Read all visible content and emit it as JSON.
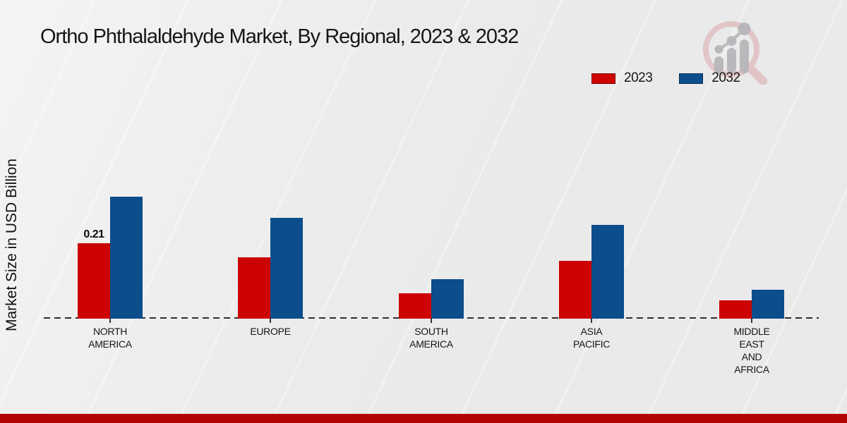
{
  "page": {
    "title": "Ortho Phthalaldehyde Market, By Regional, 2023 & 2032",
    "y_axis_label": "Market Size in USD Billion"
  },
  "legend": {
    "items": [
      {
        "label": "2023",
        "color": "#cc0302"
      },
      {
        "label": "2032",
        "color": "#0c4d8c"
      }
    ],
    "position": "top-right"
  },
  "colors": {
    "series_2023": "#cc0302",
    "series_2032": "#0c4d8c",
    "footer_accent": "#b50404",
    "baseline": "#2e2e2e",
    "background": "#ebebeb",
    "text": "#161616"
  },
  "logo": {
    "name": "magnifier-bar-chart-logo"
  },
  "chart_data": {
    "type": "bar",
    "title": "Ortho Phthalaldehyde Market, By Regional, 2023 & 2032",
    "xlabel": "",
    "ylabel": "Market Size in USD Billion",
    "categories": [
      "NORTH AMERICA",
      "EUROPE",
      "SOUTH AMERICA",
      "ASIA PACIFIC",
      "MIDDLE EAST AND AFRICA"
    ],
    "category_lines": [
      [
        "NORTH",
        "AMERICA"
      ],
      [
        "EUROPE"
      ],
      [
        "SOUTH",
        "AMERICA"
      ],
      [
        "ASIA",
        "PACIFIC"
      ],
      [
        "MIDDLE",
        "EAST",
        "AND",
        "AFRICA"
      ]
    ],
    "series": [
      {
        "name": "2023",
        "color": "#cc0302",
        "values": [
          0.21,
          0.17,
          0.07,
          0.16,
          0.05
        ],
        "point_labels": [
          "0.21",
          "",
          "",
          "",
          ""
        ]
      },
      {
        "name": "2032",
        "color": "#0c4d8c",
        "values": [
          0.34,
          0.28,
          0.11,
          0.26,
          0.08
        ],
        "point_labels": [
          "",
          "",
          "",
          "",
          ""
        ]
      }
    ],
    "ylim": [
      0,
      0.4
    ],
    "grid": false,
    "y_axis_ticks_visible": false,
    "baseline_style": "dashed",
    "legend_position": "top-right"
  }
}
